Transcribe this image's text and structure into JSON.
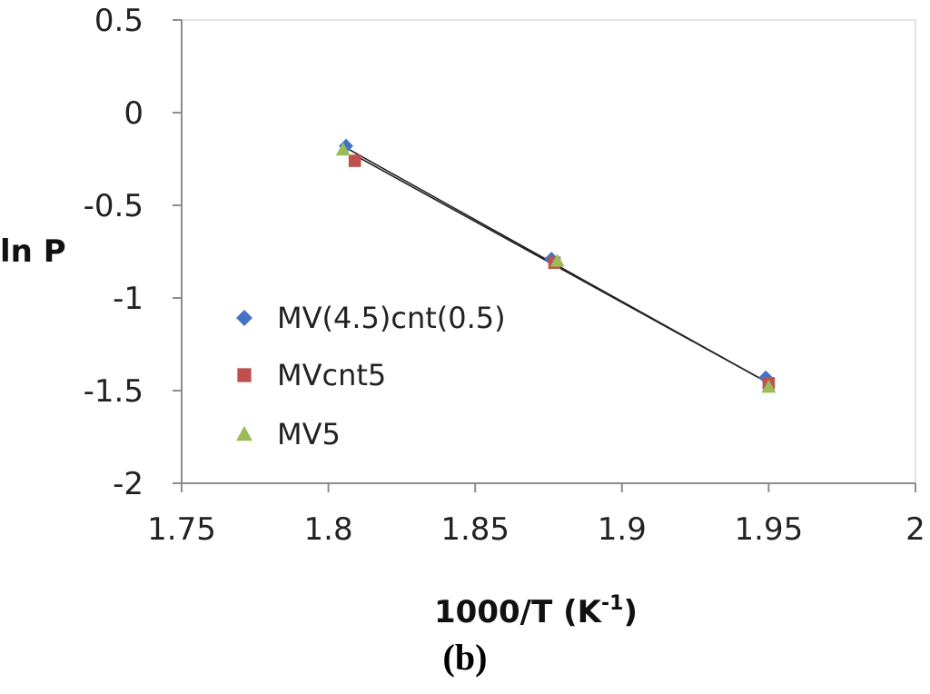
{
  "chart_data": {
    "type": "scatter",
    "title": "",
    "xlabel": "1000/T (K",
    "xlabel_sup": "-1",
    "xlabel_close": ")",
    "ylabel": "ln P",
    "xlim": [
      1.75,
      2
    ],
    "ylim": [
      -2,
      0.5
    ],
    "xticks": [
      1.75,
      1.8,
      1.85,
      1.9,
      1.95,
      2
    ],
    "xtick_labels": [
      "1.75",
      "1.8",
      "1.85",
      "1.9",
      "1.95",
      "2"
    ],
    "yticks": [
      0.5,
      0,
      -0.5,
      -1,
      -1.5,
      -2
    ],
    "ytick_labels": [
      "0.5",
      "0",
      "-0.5",
      "-1",
      "-1.5",
      "-2"
    ],
    "grid": false,
    "legend_position": "left-center",
    "series": [
      {
        "name": "MV(4.5)cnt(0.5)",
        "marker": "diamond",
        "color": "#4472C4",
        "x": [
          1.806,
          1.876,
          1.949
        ],
        "y": [
          -0.18,
          -0.79,
          -1.43
        ]
      },
      {
        "name": "MVcnt5",
        "marker": "square",
        "color": "#C0504D",
        "x": [
          1.809,
          1.877,
          1.95
        ],
        "y": [
          -0.26,
          -0.81,
          -1.46
        ]
      },
      {
        "name": "MV5",
        "marker": "triangle",
        "color": "#9BBB59",
        "x": [
          1.805,
          1.878,
          1.95
        ],
        "y": [
          -0.2,
          -0.8,
          -1.48
        ]
      }
    ],
    "trendlines": [
      {
        "x": [
          1.806,
          1.95
        ],
        "y": [
          -0.19,
          -1.46
        ]
      },
      {
        "x": [
          1.809,
          1.95
        ],
        "y": [
          -0.23,
          -1.46
        ]
      }
    ],
    "panel_label": "(b)"
  }
}
